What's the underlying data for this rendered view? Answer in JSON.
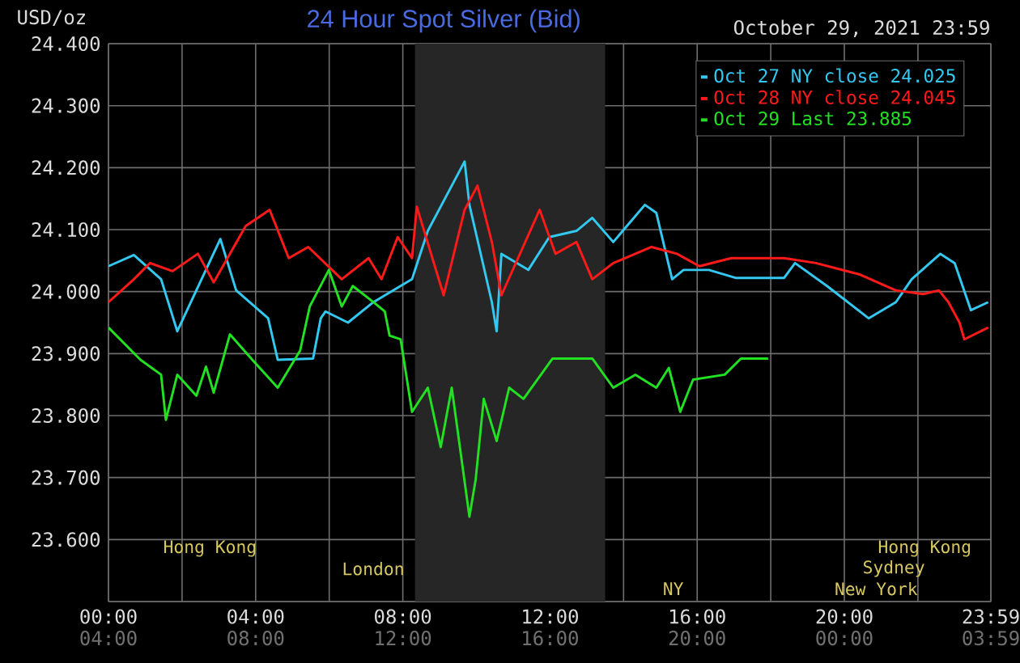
{
  "chart_data": {
    "type": "line",
    "title": "24 Hour Spot Silver (Bid)",
    "subtitle": "October 29, 2021 23:59",
    "ylabel": "USD/oz",
    "xlim": [
      0,
      23.983
    ],
    "ylim": [
      23.5,
      24.4
    ],
    "xticks": [
      {
        "value": 0,
        "label": "00:00"
      },
      {
        "value": 2,
        "label": null
      },
      {
        "value": 4,
        "label": "04:00"
      },
      {
        "value": 6,
        "label": null
      },
      {
        "value": 8,
        "label": "08:00"
      },
      {
        "value": 10,
        "label": null
      },
      {
        "value": 12,
        "label": "12:00"
      },
      {
        "value": 14,
        "label": null
      },
      {
        "value": 16,
        "label": "16:00"
      },
      {
        "value": 18,
        "label": null
      },
      {
        "value": 20,
        "label": "20:00"
      },
      {
        "value": 22,
        "label": null
      },
      {
        "value": 23.983,
        "label": "23:59"
      }
    ],
    "x2lim": [
      "2021-10-29T04:00",
      "2021-10-30T03:59"
    ],
    "x2ticks": [
      {
        "value": "2021-10-29T04:00",
        "label": "04:00"
      },
      {
        "value": "2021-10-29T08:00",
        "label": "08:00"
      },
      {
        "value": "2021-10-29T12:00",
        "label": "12:00"
      },
      {
        "value": "2021-10-29T16:00",
        "label": "16:00"
      },
      {
        "value": "2021-10-29T20:00",
        "label": "20:00"
      },
      {
        "value": "2021-10-30T00:00",
        "label": "00:00"
      },
      {
        "value": "2021-10-30T03:59",
        "label": "03:59"
      }
    ],
    "yticks": [
      {
        "value": 23.5,
        "label": null
      },
      {
        "value": 23.6,
        "label": "23.600"
      },
      {
        "value": 23.7,
        "label": "23.700"
      },
      {
        "value": 23.8,
        "label": "23.800"
      },
      {
        "value": 23.9,
        "label": "23.900"
      },
      {
        "value": 24.0,
        "label": "24.000"
      },
      {
        "value": 24.1,
        "label": "24.100"
      },
      {
        "value": 24.2,
        "label": "24.200"
      },
      {
        "value": 24.3,
        "label": "24.300"
      },
      {
        "value": 24.4,
        "label": "24.400"
      }
    ],
    "grid": true,
    "legend": "top right",
    "bands": [
      {
        "axis": "x",
        "from": 8.33,
        "to": 13.5,
        "color": "#262626"
      }
    ],
    "annotations": [
      "Hong Kong",
      "Hong Kong",
      "London",
      "Sydney",
      "NY",
      "New York"
    ],
    "series": [
      {
        "name": "Oct 27 NY close 24.025",
        "color": "#33c8f0",
        "x": [
          0,
          0.69,
          1.43,
          1.87,
          3.04,
          3.47,
          4.34,
          4.6,
          5.56,
          5.77,
          5.9,
          6.51,
          7.2,
          8.25,
          8.68,
          9.68,
          9.81,
          10.42,
          10.55,
          10.68,
          11.41,
          11.98,
          12.72,
          13.15,
          13.72,
          14.58,
          14.89,
          15.32,
          15.63,
          16.32,
          17.06,
          18.36,
          18.66,
          19.53,
          20.66,
          21.4,
          21.83,
          22.61,
          23.0,
          23.44,
          23.91
        ],
        "values": [
          24.041,
          24.059,
          24.02,
          23.936,
          24.085,
          24.002,
          23.957,
          23.89,
          23.892,
          23.957,
          23.968,
          23.95,
          23.983,
          24.02,
          24.098,
          24.21,
          24.14,
          23.983,
          23.936,
          24.061,
          24.035,
          24.088,
          24.098,
          24.119,
          24.08,
          24.14,
          24.127,
          24.02,
          24.035,
          24.035,
          24.022,
          24.022,
          24.046,
          24.009,
          23.957,
          23.983,
          24.02,
          24.061,
          24.046,
          23.97,
          23.983
        ]
      },
      {
        "name": "Oct 28 NY close 24.045",
        "color": "#ff1a1a",
        "x": [
          0,
          0.69,
          1.13,
          1.74,
          2.43,
          2.86,
          3.73,
          4.38,
          4.9,
          5.43,
          6.34,
          7.07,
          7.42,
          7.86,
          8.25,
          8.38,
          9.11,
          9.68,
          10.03,
          10.42,
          10.68,
          11.72,
          12.15,
          12.72,
          13.15,
          13.72,
          14.76,
          15.45,
          16.06,
          16.93,
          18.36,
          19.23,
          20.4,
          21.4,
          22.14,
          22.57,
          22.83,
          23.13,
          23.26,
          23.91
        ],
        "values": [
          23.983,
          24.02,
          24.046,
          24.033,
          24.061,
          24.015,
          24.106,
          24.132,
          24.054,
          24.072,
          24.02,
          24.054,
          24.02,
          24.088,
          24.054,
          24.137,
          23.994,
          24.132,
          24.171,
          24.08,
          23.994,
          24.132,
          24.061,
          24.08,
          24.02,
          24.046,
          24.072,
          24.061,
          24.041,
          24.054,
          24.054,
          24.046,
          24.028,
          24.002,
          23.996,
          24.002,
          23.983,
          23.95,
          23.923,
          23.942
        ]
      },
      {
        "name": "Oct 29 Last 23.885",
        "color": "#22e022",
        "x": [
          0,
          0.87,
          1.43,
          1.56,
          1.87,
          2.39,
          2.65,
          2.86,
          3.3,
          3.91,
          4.6,
          5.21,
          5.47,
          5.99,
          6.34,
          6.64,
          7.2,
          7.51,
          7.64,
          7.94,
          8.25,
          8.68,
          9.03,
          9.33,
          9.81,
          9.98,
          10.2,
          10.55,
          10.89,
          11.28,
          12.07,
          13.15,
          13.72,
          14.32,
          14.89,
          15.23,
          15.54,
          15.89,
          16.75,
          17.19,
          17.93
        ],
        "values": [
          23.942,
          23.89,
          23.866,
          23.793,
          23.866,
          23.832,
          23.879,
          23.837,
          23.931,
          23.89,
          23.845,
          23.905,
          23.976,
          24.035,
          23.976,
          24.009,
          23.983,
          23.968,
          23.929,
          23.923,
          23.806,
          23.845,
          23.749,
          23.845,
          23.637,
          23.697,
          23.827,
          23.759,
          23.845,
          23.827,
          23.892,
          23.892,
          23.845,
          23.866,
          23.845,
          23.877,
          23.806,
          23.858,
          23.866,
          23.892,
          23.892
        ]
      }
    ]
  }
}
